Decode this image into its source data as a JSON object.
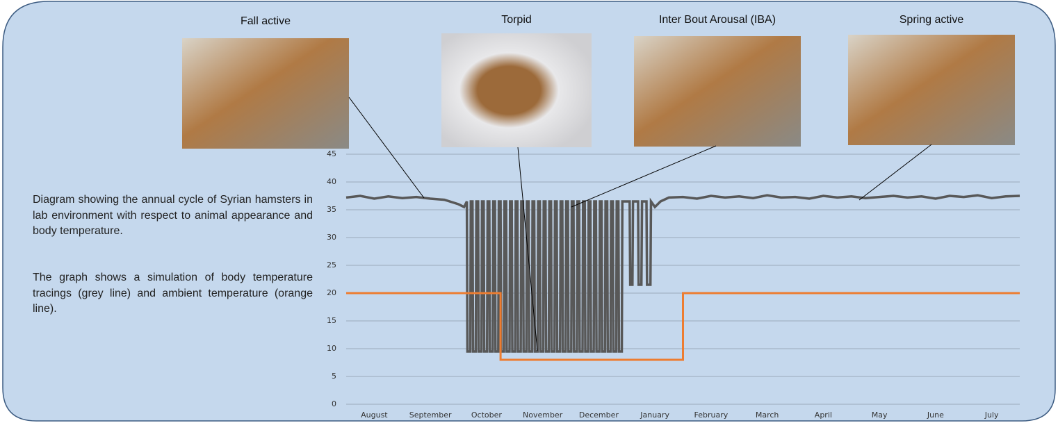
{
  "photos": [
    {
      "caption": "Fall active"
    },
    {
      "caption": "Torpid"
    },
    {
      "caption": "Inter Bout Arousal (IBA)"
    },
    {
      "caption": "Spring active"
    }
  ],
  "description": [
    "Diagram showing the annual cycle of Syrian hamsters in lab environment with respect to animal appearance and body temperature.",
    "The graph shows a simulation of body temperature tracings (grey line) and ambient temperature (orange line)."
  ],
  "chart_data": {
    "type": "line",
    "categories": [
      "August",
      "September",
      "October",
      "November",
      "December",
      "January",
      "February",
      "March",
      "April",
      "May",
      "June",
      "July"
    ],
    "xlim": [
      0,
      12
    ],
    "ylim": [
      0,
      45
    ],
    "yticks": [
      0,
      5,
      10,
      15,
      20,
      25,
      30,
      35,
      40,
      45
    ],
    "grid": true,
    "series": [
      {
        "color": "#585858",
        "x": [
          0,
          0.25,
          0.5,
          0.75,
          1.0,
          1.25,
          1.5,
          1.75,
          2.0,
          2.1,
          2.15,
          2.16,
          2.21,
          2.22,
          2.25,
          2.26,
          2.31,
          2.32,
          2.35,
          2.36,
          2.41,
          2.42,
          2.45,
          2.46,
          2.51,
          2.52,
          2.55,
          2.56,
          2.61,
          2.62,
          2.65,
          2.66,
          2.71,
          2.72,
          2.75,
          2.76,
          2.81,
          2.82,
          2.85,
          2.86,
          2.91,
          2.92,
          2.95,
          2.96,
          3.01,
          3.02,
          3.05,
          3.06,
          3.11,
          3.12,
          3.15,
          3.16,
          3.21,
          3.22,
          3.25,
          3.26,
          3.31,
          3.32,
          3.35,
          3.36,
          3.41,
          3.42,
          3.45,
          3.46,
          3.51,
          3.52,
          3.55,
          3.56,
          3.61,
          3.62,
          3.65,
          3.66,
          3.71,
          3.72,
          3.75,
          3.76,
          3.81,
          3.82,
          3.85,
          3.86,
          3.91,
          3.92,
          3.95,
          3.96,
          4.01,
          4.02,
          4.05,
          4.06,
          4.11,
          4.12,
          4.15,
          4.16,
          4.21,
          4.22,
          4.25,
          4.26,
          4.31,
          4.32,
          4.35,
          4.36,
          4.41,
          4.42,
          4.45,
          4.46,
          4.51,
          4.52,
          4.55,
          4.56,
          4.61,
          4.62,
          4.65,
          4.66,
          4.71,
          4.72,
          4.75,
          4.76,
          4.81,
          4.82,
          4.85,
          4.86,
          4.91,
          4.92,
          5.0,
          5.05,
          5.06,
          5.1,
          5.11,
          5.2,
          5.21,
          5.26,
          5.27,
          5.35,
          5.36,
          5.42,
          5.43,
          5.5,
          5.6,
          5.75,
          6.0,
          6.25,
          6.5,
          6.75,
          7.0,
          7.25,
          7.5,
          7.75,
          8.0,
          8.25,
          8.5,
          8.75,
          9.0,
          9.25,
          9.5,
          9.75,
          10.0,
          10.25,
          10.5,
          10.75,
          11.0,
          11.25,
          11.5,
          11.75,
          12.0
        ],
        "values": [
          37.2,
          37.5,
          37,
          37.4,
          37.1,
          37.3,
          37,
          36.8,
          36,
          35.5,
          36.5,
          9.5,
          9.5,
          36.5,
          36.5,
          9.5,
          9.5,
          36.5,
          36.5,
          9.5,
          9.5,
          36.5,
          36.5,
          9.5,
          9.5,
          36.5,
          36.5,
          9.5,
          9.5,
          36.5,
          36.5,
          9.5,
          9.5,
          36.5,
          36.5,
          9.5,
          9.5,
          36.5,
          36.5,
          9.5,
          9.5,
          36.5,
          36.5,
          9.5,
          9.5,
          36.5,
          36.5,
          9.5,
          9.5,
          36.5,
          36.5,
          9.5,
          9.5,
          36.5,
          36.5,
          9.5,
          9.5,
          36.5,
          36.5,
          9.5,
          9.5,
          36.5,
          36.5,
          9.5,
          9.5,
          36.5,
          36.5,
          9.5,
          9.5,
          36.5,
          36.5,
          9.5,
          9.5,
          36.5,
          36.5,
          9.5,
          9.5,
          36.5,
          36.5,
          9.5,
          9.5,
          36.5,
          36.5,
          9.5,
          9.5,
          36.5,
          36.5,
          9.5,
          9.5,
          36.5,
          36.5,
          9.5,
          9.5,
          36.5,
          36.5,
          9.5,
          9.5,
          36.5,
          36.5,
          9.5,
          9.5,
          36.5,
          36.5,
          9.5,
          9.5,
          36.5,
          36.5,
          9.5,
          9.5,
          36.5,
          36.5,
          9.5,
          9.5,
          36.5,
          36.5,
          9.5,
          9.5,
          36.5,
          36.5,
          9.5,
          9.5,
          36.5,
          36.5,
          36.5,
          21.5,
          21.5,
          36.5,
          36.5,
          21.5,
          21.5,
          36.5,
          36.5,
          21.5,
          21.5,
          36.5,
          35.5,
          36.5,
          37.2,
          37.3,
          37,
          37.5,
          37.2,
          37.4,
          37.1,
          37.6,
          37.2,
          37.3,
          37,
          37.5,
          37.2,
          37.4,
          37.1,
          37.3,
          37.5,
          37.2,
          37.4,
          37,
          37.5,
          37.3,
          37.6,
          37.1,
          37.4,
          37.5
        ]
      },
      {
        "color": "#ed7d31",
        "x": [
          0,
          2.75,
          2.75,
          6.0,
          6.0,
          12
        ],
        "values": [
          20,
          20,
          8,
          8,
          20,
          20
        ]
      }
    ]
  }
}
